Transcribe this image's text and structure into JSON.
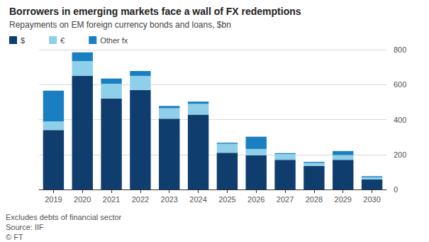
{
  "chart_data": {
    "type": "bar",
    "title": "Borrowers in emerging markets face a wall of FX redemptions",
    "subtitle": "Repayments on EM foreign currency bonds and loans, $bn",
    "notes": [
      "Excludes debts of financial sector",
      "Source: IIF",
      "© FT"
    ],
    "categories": [
      "2019",
      "2020",
      "2021",
      "2022",
      "2023",
      "2024",
      "2025",
      "2026",
      "2027",
      "2028",
      "2029",
      "2030"
    ],
    "series": [
      {
        "name": "$",
        "color": "#0f3d6e",
        "values": [
          340,
          650,
          520,
          570,
          405,
          428,
          210,
          195,
          170,
          135,
          170,
          57
        ]
      },
      {
        "name": "€",
        "color": "#8ecfea",
        "values": [
          50,
          85,
          85,
          80,
          60,
          62,
          52,
          37,
          33,
          17,
          27,
          13
        ]
      },
      {
        "name": "Other fx",
        "color": "#1a7fc1",
        "values": [
          175,
          50,
          30,
          28,
          13,
          13,
          6,
          70,
          5,
          6,
          23,
          6
        ]
      }
    ],
    "ylim": [
      0,
      800
    ],
    "yticks": [
      0,
      200,
      400,
      600,
      800
    ],
    "grid": true,
    "stacked": true,
    "legend": "top-left"
  }
}
